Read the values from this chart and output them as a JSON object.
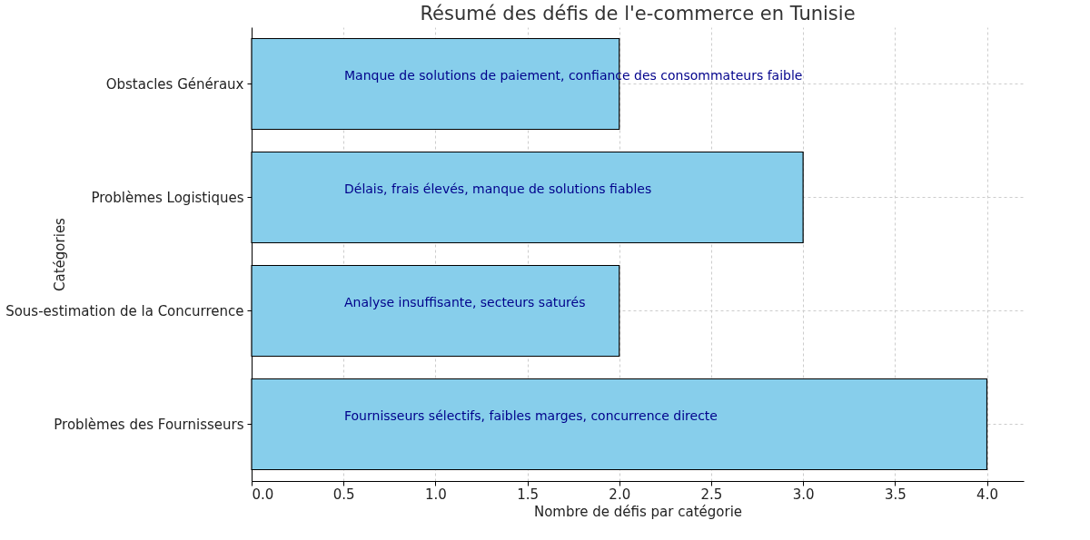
{
  "chart_data": {
    "type": "bar",
    "orientation": "horizontal",
    "title": "Résumé des défis de l'e-commerce en Tunisie",
    "xlabel": "Nombre de défis par catégorie",
    "ylabel": "Catégories",
    "categories": [
      "Obstacles Généraux",
      "Problèmes Logistiques",
      "Sous-estimation de la Concurrence",
      "Problèmes des Fournisseurs"
    ],
    "values": [
      2,
      3,
      2,
      4
    ],
    "color": "#87ceeb",
    "xlim": [
      0,
      4.2
    ],
    "xticks": [
      {
        "value": 0,
        "label": "0.0"
      },
      {
        "value": 0.5,
        "label": "0.5"
      },
      {
        "value": 1,
        "label": "1.0"
      },
      {
        "value": 1.5,
        "label": "1.5"
      },
      {
        "value": 2,
        "label": "2.0"
      },
      {
        "value": 2.5,
        "label": "2.5"
      },
      {
        "value": 3,
        "label": "3.0"
      },
      {
        "value": 3.5,
        "label": "3.5"
      },
      {
        "value": 4,
        "label": "4.0"
      }
    ],
    "grid": true,
    "annotations": [
      "Manque de solutions de paiement, confiance des consommateurs faible",
      "Délais, frais élevés, manque de solutions fiables",
      "Analyse insuffisante, secteurs saturés",
      "Fournisseurs sélectifs, faibles marges, concurrence directe"
    ]
  }
}
